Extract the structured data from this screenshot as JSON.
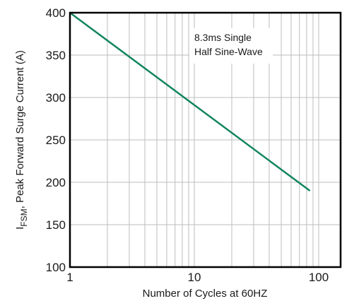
{
  "chart_data": {
    "type": "line",
    "title": "",
    "xlabel": "Number of Cycles at 60HZ",
    "ylabel": {
      "prefix": "I",
      "subscript": "FSM",
      "suffix": ", Peak Forward Surge Current (A)"
    },
    "x_scale": "log",
    "xlim": [
      1,
      150
    ],
    "ylim": [
      100,
      400
    ],
    "x_ticks": [
      1,
      10,
      100
    ],
    "x_tick_labels": [
      "1",
      "10",
      "100"
    ],
    "y_ticks": [
      100,
      150,
      200,
      250,
      300,
      350,
      400
    ],
    "y_tick_labels": [
      "100",
      "150",
      "200",
      "250",
      "300",
      "350",
      "400"
    ],
    "grid": true,
    "series": [
      {
        "x": [
          1,
          85
        ],
        "y": [
          400,
          190
        ],
        "color": "#12855e"
      }
    ],
    "annotations": [
      "8.3ms Single",
      "Half Sine-Wave"
    ]
  }
}
